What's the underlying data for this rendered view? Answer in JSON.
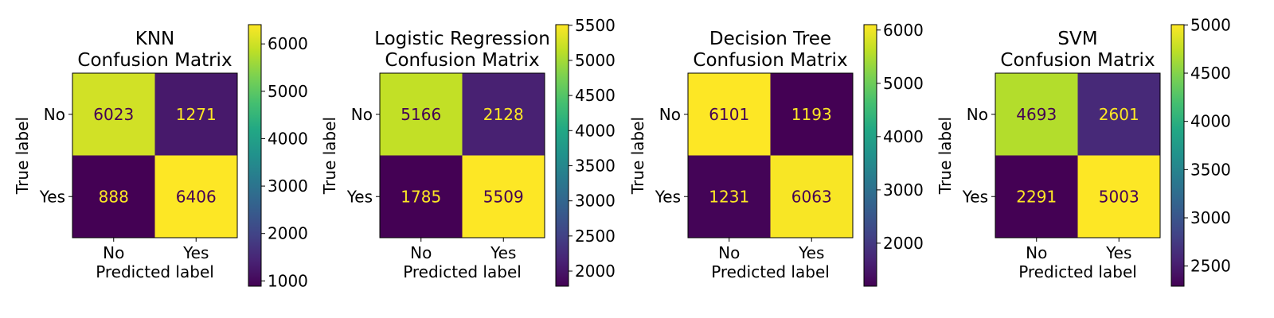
{
  "chart_data": [
    {
      "type": "heatmap",
      "title_lines": [
        "KNN",
        "Confusion Matrix"
      ],
      "xlabel": "Predicted label",
      "ylabel": "True label",
      "x_ticks": [
        "No",
        "Yes"
      ],
      "y_ticks": [
        "No",
        "Yes"
      ],
      "matrix": [
        [
          6023,
          1271
        ],
        [
          888,
          6406
        ]
      ],
      "colorbar": {
        "vmin": 888,
        "vmax": 6406,
        "ticks": [
          1000,
          2000,
          3000,
          4000,
          5000,
          6000
        ]
      }
    },
    {
      "type": "heatmap",
      "title_lines": [
        "Logistic Regression",
        "Confusion Matrix"
      ],
      "xlabel": "Predicted label",
      "ylabel": "True label",
      "x_ticks": [
        "No",
        "Yes"
      ],
      "y_ticks": [
        "No",
        "Yes"
      ],
      "matrix": [
        [
          5166,
          2128
        ],
        [
          1785,
          5509
        ]
      ],
      "colorbar": {
        "vmin": 1785,
        "vmax": 5509,
        "ticks": [
          2000,
          2500,
          3000,
          3500,
          4000,
          4500,
          5000,
          5500
        ]
      }
    },
    {
      "type": "heatmap",
      "title_lines": [
        "Decision Tree",
        "Confusion Matrix"
      ],
      "xlabel": "Predicted label",
      "ylabel": "True label",
      "x_ticks": [
        "No",
        "Yes"
      ],
      "y_ticks": [
        "No",
        "Yes"
      ],
      "matrix": [
        [
          6101,
          1193
        ],
        [
          1231,
          6063
        ]
      ],
      "colorbar": {
        "vmin": 1193,
        "vmax": 6101,
        "ticks": [
          2000,
          3000,
          4000,
          5000,
          6000
        ]
      }
    },
    {
      "type": "heatmap",
      "title_lines": [
        "SVM",
        "Confusion Matrix"
      ],
      "xlabel": "Predicted label",
      "ylabel": "True label",
      "x_ticks": [
        "No",
        "Yes"
      ],
      "y_ticks": [
        "No",
        "Yes"
      ],
      "matrix": [
        [
          4693,
          2601
        ],
        [
          2291,
          5003
        ]
      ],
      "colorbar": {
        "vmin": 2291,
        "vmax": 5003,
        "ticks": [
          2500,
          3000,
          3500,
          4000,
          4500,
          5000
        ]
      }
    }
  ],
  "colormap": "viridis",
  "text_colors": {
    "on_dark": "#fde725",
    "on_light": "#440154"
  }
}
